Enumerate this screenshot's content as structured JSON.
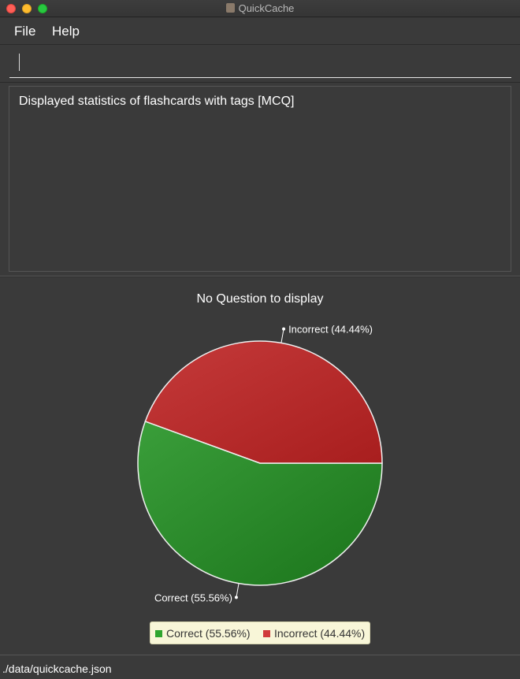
{
  "window": {
    "title": "QuickCache"
  },
  "menu": {
    "file_label": "File",
    "help_label": "Help"
  },
  "command": {
    "value": "",
    "placeholder": ""
  },
  "result": {
    "message": "Displayed statistics of flashcards with tags [MCQ]"
  },
  "chart_data": {
    "type": "pie",
    "title": "No Question to display",
    "slices": [
      {
        "name": "Correct",
        "value": 55.56,
        "label": "Correct (55.56%)",
        "color": "#2a8a2a"
      },
      {
        "name": "Incorrect",
        "value": 44.44,
        "label": "Incorrect (44.44%)",
        "color": "#b82a2a"
      }
    ],
    "legend_position": "bottom"
  },
  "status": {
    "path": "./data/quickcache.json"
  },
  "colors": {
    "background": "#3a3a3a",
    "correct": "#2a8a2a",
    "incorrect": "#b82a2a"
  }
}
